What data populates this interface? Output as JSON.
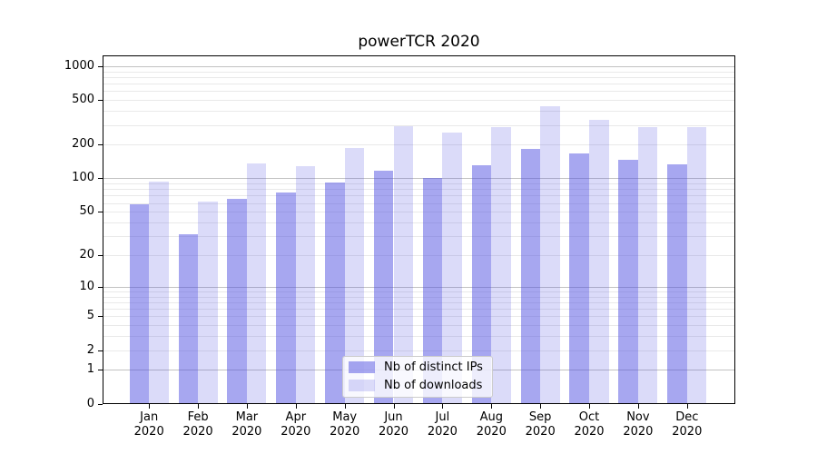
{
  "title": "powerTCR 2020",
  "chart_data": {
    "type": "bar",
    "title": "powerTCR 2020",
    "categories": [
      {
        "month": "Jan",
        "year": "2020"
      },
      {
        "month": "Feb",
        "year": "2020"
      },
      {
        "month": "Mar",
        "year": "2020"
      },
      {
        "month": "Apr",
        "year": "2020"
      },
      {
        "month": "May",
        "year": "2020"
      },
      {
        "month": "Jun",
        "year": "2020"
      },
      {
        "month": "Jul",
        "year": "2020"
      },
      {
        "month": "Aug",
        "year": "2020"
      },
      {
        "month": "Sep",
        "year": "2020"
      },
      {
        "month": "Oct",
        "year": "2020"
      },
      {
        "month": "Nov",
        "year": "2020"
      },
      {
        "month": "Dec",
        "year": "2020"
      }
    ],
    "series": [
      {
        "name": "Nb of distinct IPs",
        "color": "rgba(75,75,225,0.485)",
        "color_hex_on_white": "#a8a8f0",
        "values": [
          58,
          31,
          65,
          75,
          91,
          118,
          101,
          130,
          182,
          167,
          146,
          134
        ]
      },
      {
        "name": "Nb of downloads",
        "color": "rgba(75,75,225,0.20)",
        "color_hex_on_white": "#dbdbf9",
        "values": [
          94,
          62,
          135,
          128,
          186,
          291,
          258,
          290,
          443,
          335,
          290,
          289
        ]
      }
    ],
    "y_axis": {
      "ticks": [
        0,
        1,
        2,
        5,
        10,
        20,
        50,
        100,
        200,
        500,
        1000
      ],
      "scale": "log10(1+v)",
      "ylim": [
        0,
        1250
      ],
      "major_grid_at": [
        1,
        10,
        100,
        1000
      ],
      "minor_grid_at": [
        2,
        3,
        4,
        5,
        6,
        7,
        8,
        9,
        20,
        30,
        40,
        50,
        60,
        70,
        80,
        90,
        200,
        300,
        400,
        500,
        600,
        700,
        800,
        900
      ]
    },
    "xlabel": "",
    "ylabel": "",
    "grid": true,
    "legend": {
      "position": "lower center",
      "entries": [
        "Nb of distinct IPs",
        "Nb of downloads"
      ]
    },
    "colors": {
      "grid_major": "#c2c2c2",
      "grid_minor": "#e9e9e9",
      "spine": "#000000",
      "text": "#000000",
      "legend_border": "#cccccc",
      "background": "#ffffff"
    }
  }
}
